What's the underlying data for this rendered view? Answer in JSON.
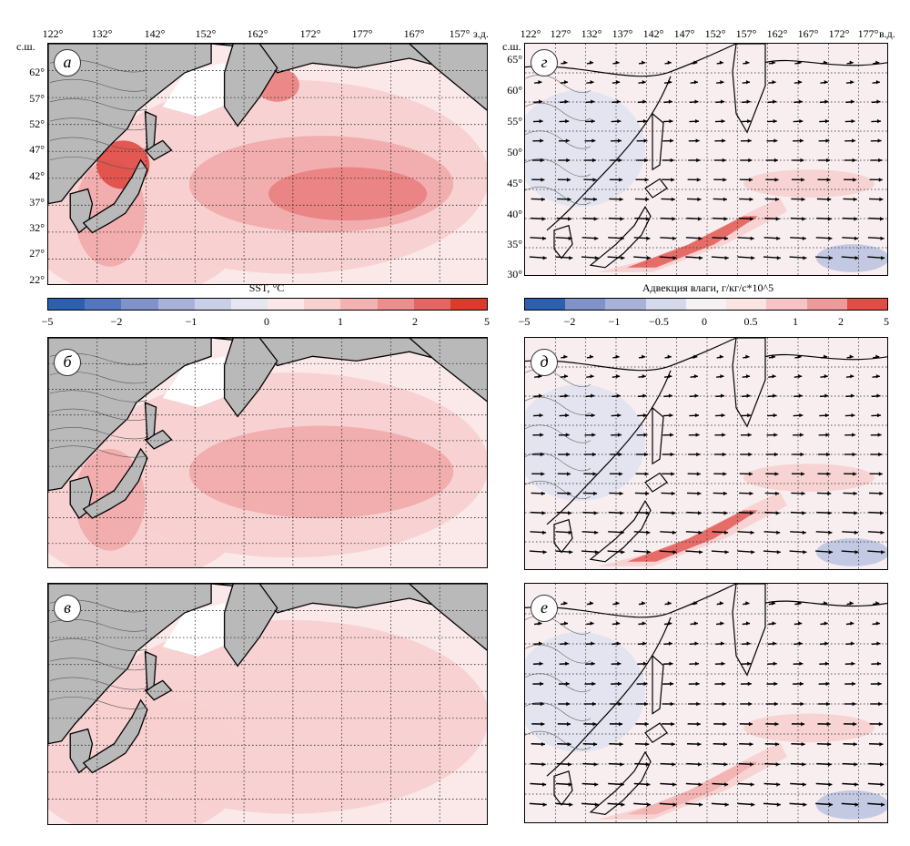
{
  "left_top_axis": {
    "lon_labels": [
      "122°",
      "132°",
      "142°",
      "152°",
      "162°",
      "172°",
      "177°",
      "167°",
      "157°"
    ],
    "lon_suffix": "з.д.",
    "lat_suffix": "с.ш.",
    "lat_labels": [
      "62°",
      "57°",
      "52°",
      "47°",
      "42°",
      "37°",
      "32°",
      "27°",
      "22°"
    ]
  },
  "right_top_axis": {
    "lon_labels": [
      "122°",
      "127°",
      "132°",
      "137°",
      "142°",
      "147°",
      "152°",
      "157°",
      "162°",
      "167°",
      "172°",
      "177°"
    ],
    "lon_suffix": "в.д.",
    "lat_suffix": "с.ш.",
    "lat_labels": [
      "65°",
      "60°",
      "55°",
      "50°",
      "45°",
      "40°",
      "35°",
      "30°"
    ]
  },
  "panels": {
    "a": {
      "letter": "а",
      "variable": "SST"
    },
    "b": {
      "letter": "б",
      "variable": "SST"
    },
    "v": {
      "letter": "в",
      "variable": "SST"
    },
    "g": {
      "letter": "г",
      "variable": "moisture_advection"
    },
    "d": {
      "letter": "д",
      "variable": "moisture_advection"
    },
    "e": {
      "letter": "е",
      "variable": "moisture_advection"
    }
  },
  "colorbar_sst": {
    "title": "SST, °C",
    "ticks": [
      "−5",
      "−2",
      "−1",
      "0",
      "1",
      "2",
      "5"
    ],
    "colors": [
      "#2d5fb0",
      "#5376be",
      "#7f93c9",
      "#a7b2d8",
      "#c9cfe6",
      "#e6e6f2",
      "#fbe7e7",
      "#f7d0d0",
      "#f2b2b2",
      "#ec8e8e",
      "#e56565",
      "#dd3a2e"
    ]
  },
  "colorbar_adv": {
    "title": "Адвекция влаги, г/кг/с*10^5",
    "ticks": [
      "−5",
      "−2",
      "−1",
      "−0.5",
      "0",
      "0.5",
      "1",
      "2",
      "5"
    ],
    "colors": [
      "#2d5fb0",
      "#7f93c9",
      "#a7b2d8",
      "#d5d9ec",
      "#f6f1f3",
      "#fbe4e4",
      "#f6c4c4",
      "#ef9a9a",
      "#e34b45"
    ]
  },
  "colors": {
    "land": "#b9b9b9",
    "sea_base": "#fbe9e9",
    "warm_1": "#f7cfcf",
    "warm_2": "#f1aaaa",
    "warm_3": "#ea7f7f",
    "warm_4": "#e04a44",
    "cool_1": "#dde1ef"
  }
}
